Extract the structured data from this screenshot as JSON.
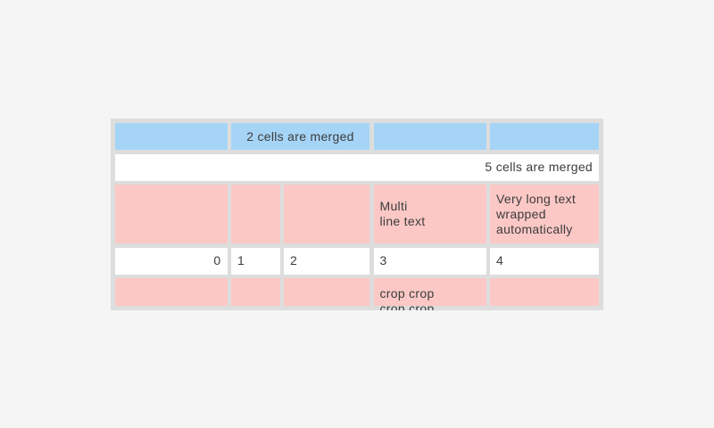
{
  "page": {
    "bg_color": "#f5f5f5"
  },
  "table": {
    "colors": {
      "grid_bg": "#dddddd",
      "header_cell_bg": "#a5d4f6",
      "highlight_cell_bg": "#fbc8c6",
      "cell_bg": "#ffffff",
      "text": "#3c3c3c"
    },
    "rows": [
      {
        "type": "header-blue",
        "cells": [
          {
            "text": ""
          },
          {
            "text": "2 cells are merged",
            "span": 2,
            "align": "center"
          },
          {
            "text": ""
          },
          {
            "text": ""
          }
        ]
      },
      {
        "type": "merged-white",
        "cells": [
          {
            "text": "5 cells are merged",
            "span": 5,
            "align": "right"
          }
        ]
      },
      {
        "type": "highlight-pink",
        "cells": [
          {
            "text": ""
          },
          {
            "text": ""
          },
          {
            "text": ""
          },
          {
            "text": "Multi\nline text"
          },
          {
            "text": "Very long text wrapped automatically"
          }
        ]
      },
      {
        "type": "data-white",
        "cells": [
          {
            "text": "0",
            "align": "right"
          },
          {
            "text": "1"
          },
          {
            "text": "2"
          },
          {
            "text": "3"
          },
          {
            "text": "4"
          }
        ]
      },
      {
        "type": "highlight-pink-cropped",
        "cells": [
          {
            "text": ""
          },
          {
            "text": ""
          },
          {
            "text": ""
          },
          {
            "text": "crop crop crop crop",
            "note": "second line clipped by widget bottom"
          },
          {
            "text": ""
          }
        ]
      }
    ]
  }
}
